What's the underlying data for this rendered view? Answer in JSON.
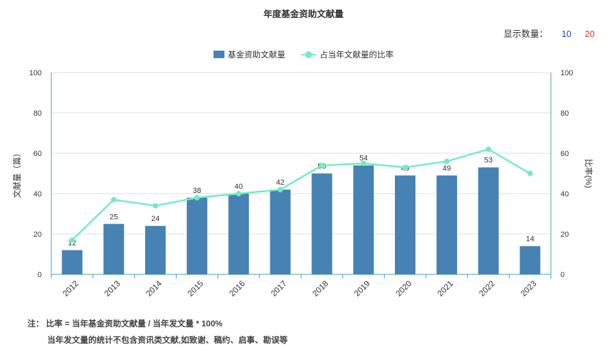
{
  "chart_data": {
    "type": "bar",
    "title": "年度基金资助文献量",
    "categories": [
      "2012",
      "2013",
      "2014",
      "2015",
      "2016",
      "2017",
      "2018",
      "2019",
      "2020",
      "2021",
      "2022",
      "2023"
    ],
    "series": [
      {
        "name": "基金资助文献量",
        "type": "bar",
        "axis": "left",
        "color": "#4682b4",
        "values": [
          12,
          25,
          24,
          38,
          40,
          42,
          50,
          54,
          49,
          49,
          53,
          14
        ]
      },
      {
        "name": "占当年文献量的比率",
        "type": "line",
        "axis": "right",
        "color": "#73ecc2",
        "values": [
          17,
          37,
          34,
          38,
          40,
          42,
          54,
          55,
          53,
          56,
          62,
          50
        ]
      }
    ],
    "ylabel": "文献量（篇）",
    "y2label": "比率(%)",
    "ylim": [
      0,
      100
    ],
    "y2lim": [
      0,
      100
    ],
    "yticks": [
      0,
      20,
      40,
      60,
      80,
      100
    ],
    "grid": true,
    "legend_position": "top-center"
  },
  "controls": {
    "count_label": "显示数量：",
    "option_10": "10",
    "option_20": "20"
  },
  "notes": {
    "line1": "注： 比率 = 当年基金资助文献量 / 当年发文量 * 100%",
    "line2": "当年发文量的统计不包含资讯类文献,如致谢、稿约、启事、勘误等"
  }
}
